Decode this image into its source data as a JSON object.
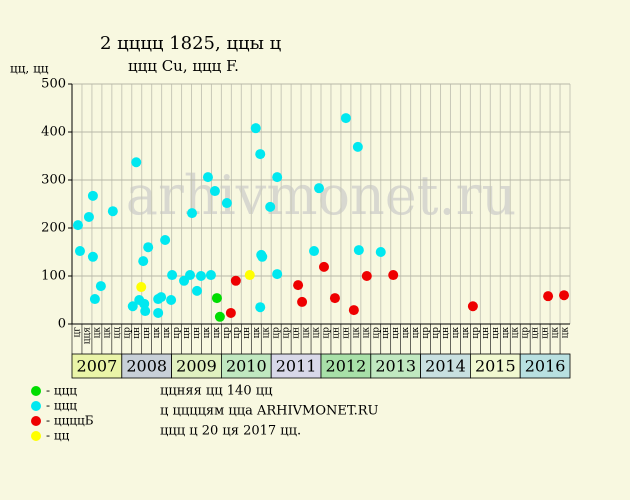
{
  "chart_data": {
    "type": "scatter",
    "title": "2 цццц 1825, ццы ц",
    "subtitle": "ццц Cu, ццц F.",
    "y_label": "цц, цц",
    "watermark": "arhivmonet.ru",
    "xlim": [
      2007,
      2017
    ],
    "ylim": [
      0,
      500
    ],
    "yticks": [
      0,
      100,
      200,
      300,
      400,
      500
    ],
    "grid": true,
    "xticks": [
      {
        "value": 2007,
        "label": "2007"
      },
      {
        "value": 2008,
        "label": "2008"
      },
      {
        "value": 2009,
        "label": "2009"
      },
      {
        "value": 2010,
        "label": "2010"
      },
      {
        "value": 2011,
        "label": "2011"
      },
      {
        "value": 2012,
        "label": "2012"
      },
      {
        "value": 2013,
        "label": "2013"
      },
      {
        "value": 2014,
        "label": "2014"
      },
      {
        "value": 2015,
        "label": "2015"
      },
      {
        "value": 2016,
        "label": "2016"
      }
    ],
    "band_colors": [
      "#eaf4a8",
      "#c8d0d8",
      "#e0f0c0",
      "#c0e8c0",
      "#d8d8e8",
      "#a8e0a8",
      "#c0e8c0",
      "#c8e0e0",
      "#f0f8d0",
      "#b8e0e0"
    ],
    "period_labels": [
      "цг",
      "цця",
      "цк",
      "цк",
      "цц",
      "цр",
      "цн",
      "цн",
      "цк",
      "цк",
      "цр",
      "цн",
      "цн",
      "цк",
      "цк",
      "цр",
      "цр",
      "цн",
      "цк",
      "цк",
      "цр",
      "цр",
      "цн",
      "цк",
      "цк",
      "цр",
      "цн",
      "цн",
      "цк",
      "цк",
      "цр",
      "цн",
      "цн",
      "цк",
      "цк",
      "цр",
      "цр",
      "цн",
      "цк",
      "цк",
      "цр",
      "цн",
      "цн",
      "цк",
      "цк",
      "цр",
      "цн",
      "цн",
      "цк",
      "цк"
    ],
    "series": [
      {
        "name": "- ццц",
        "color": "#00dd00",
        "x": [
          2009.91,
          2009.97
        ],
        "values": [
          54,
          15
        ]
      },
      {
        "name": "- ццц",
        "color": "#00e8f0",
        "x": [
          2007.12,
          2007.16,
          2007.34,
          2007.42,
          2007.42,
          2007.46,
          2007.58,
          2007.82,
          2008.22,
          2008.29,
          2008.35,
          2008.43,
          2008.45,
          2008.47,
          2008.53,
          2008.73,
          2008.73,
          2008.79,
          2008.87,
          2008.99,
          2009.01,
          2009.25,
          2009.37,
          2009.41,
          2009.51,
          2009.59,
          2009.73,
          2009.79,
          2009.87,
          2010.11,
          2010.69,
          2010.78,
          2010.78,
          2010.8,
          2010.82,
          2010.98,
          2011.12,
          2011.12,
          2011.86,
          2011.96,
          2012.5,
          2012.74,
          2012.76,
          2013.2
        ],
        "values": [
          206,
          152,
          223,
          267,
          140,
          52,
          79,
          235,
          37,
          337,
          50,
          131,
          42,
          27,
          160,
          52,
          23,
          56,
          175,
          50,
          102,
          90,
          102,
          231,
          69,
          100,
          306,
          102,
          277,
          252,
          408,
          354,
          35,
          144,
          140,
          244,
          306,
          104,
          152,
          283,
          429,
          369,
          154,
          150
        ]
      },
      {
        "name": "- ццццБ",
        "color": "#ee0000",
        "x": [
          2010.19,
          2010.29,
          2011.54,
          2011.62,
          2012.06,
          2012.28,
          2012.66,
          2012.92,
          2013.45,
          2015.05,
          2016.56,
          2016.88
        ],
        "values": [
          23,
          90,
          81,
          46,
          119,
          54,
          29,
          100,
          102,
          37,
          58,
          60
        ]
      },
      {
        "name": "- цц",
        "color": "#ffff00",
        "x": [
          2008.39,
          2010.57
        ],
        "values": [
          77,
          102
        ]
      }
    ],
    "notes": [
      "ццняя цц 140 цц",
      "ц ццццям цца ARHIVMONET.RU",
      "ццц ц 20 ця 2017 цц."
    ]
  }
}
